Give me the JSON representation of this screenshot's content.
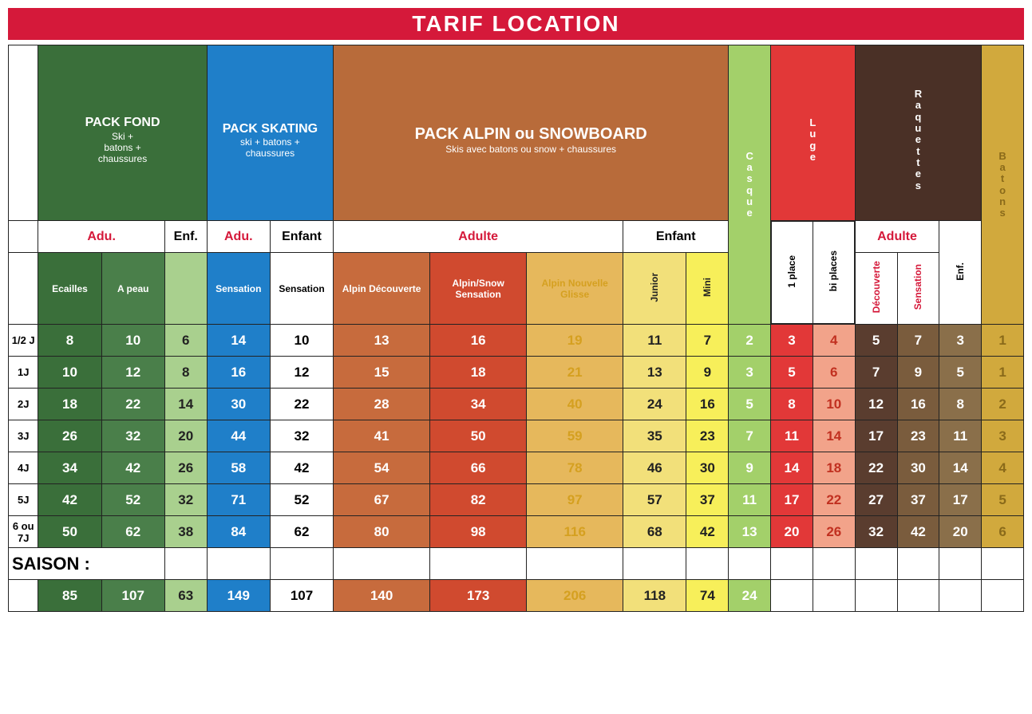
{
  "title": "TARIF  LOCATION",
  "packs": {
    "fond": {
      "title": "PACK FOND",
      "sub": "Ski +\nbatons +\nchaussures"
    },
    "skating": {
      "title": "PACK SKATING",
      "sub": "ski + batons +\nchaussures"
    },
    "alpin": {
      "title": "PACK ALPIN ou SNOWBOARD",
      "sub": "Skis avec batons ou snow + chaussures"
    },
    "casque": "Casque",
    "luge": "Luge",
    "raquettes": "Raquettes",
    "batons": "Batons"
  },
  "sub1": {
    "adu": "Adu.",
    "enf": "Enf.",
    "enfant": "Enfant",
    "adulte": "Adulte"
  },
  "sub2": {
    "ecailles": "Ecailles",
    "apeau": "A peau",
    "sensation": "Sensation",
    "alpin_dec": "Alpin Découverte",
    "alpin_sens": "Alpin/Snow Sensation",
    "alpin_ng": "Alpin Nouvelle Glisse",
    "junior": "Junior",
    "mini": "Mini",
    "p1": "1 place",
    "p2": "bi places",
    "dec": "Découverte",
    "sens": "Sensation",
    "enf": "Enf."
  },
  "rowLabels": [
    "1/2 J",
    "1J",
    "2J",
    "3J",
    "4J",
    "5J",
    "6 ou 7J"
  ],
  "saisonLabel": "SAISON :",
  "data": [
    [
      "8",
      "10",
      "6",
      "14",
      "10",
      "13",
      "16",
      "19",
      "11",
      "7",
      "2",
      "3",
      "4",
      "5",
      "7",
      "3",
      "1"
    ],
    [
      "10",
      "12",
      "8",
      "16",
      "12",
      "15",
      "18",
      "21",
      "13",
      "9",
      "3",
      "5",
      "6",
      "7",
      "9",
      "5",
      "1"
    ],
    [
      "18",
      "22",
      "14",
      "30",
      "22",
      "28",
      "34",
      "40",
      "24",
      "16",
      "5",
      "8",
      "10",
      "12",
      "16",
      "8",
      "2"
    ],
    [
      "26",
      "32",
      "20",
      "44",
      "32",
      "41",
      "50",
      "59",
      "35",
      "23",
      "7",
      "11",
      "14",
      "17",
      "23",
      "11",
      "3"
    ],
    [
      "34",
      "42",
      "26",
      "58",
      "42",
      "54",
      "66",
      "78",
      "46",
      "30",
      "9",
      "14",
      "18",
      "22",
      "30",
      "14",
      "4"
    ],
    [
      "42",
      "52",
      "32",
      "71",
      "52",
      "67",
      "82",
      "97",
      "57",
      "37",
      "11",
      "17",
      "22",
      "27",
      "37",
      "17",
      "5"
    ],
    [
      "50",
      "62",
      "38",
      "84",
      "62",
      "80",
      "98",
      "116",
      "68",
      "42",
      "13",
      "20",
      "26",
      "32",
      "42",
      "20",
      "6"
    ]
  ],
  "saison": [
    "85",
    "107",
    "63",
    "149",
    "107",
    "140",
    "173",
    "206",
    "118",
    "74",
    "24",
    "",
    "",
    "",
    "",
    "",
    ""
  ],
  "colClasses": [
    "bg-dgreen",
    "bg-mgreen",
    "bg-lgreen",
    "bg-blue",
    "bg-white",
    "bg-orange1",
    "bg-orange2",
    "bg-orange3",
    "bg-yellow1",
    "bg-yellow2",
    "bg-casque",
    "bg-red",
    "bg-pink",
    "bg-brown1",
    "bg-brown2",
    "bg-brown3",
    "bg-mustard"
  ]
}
